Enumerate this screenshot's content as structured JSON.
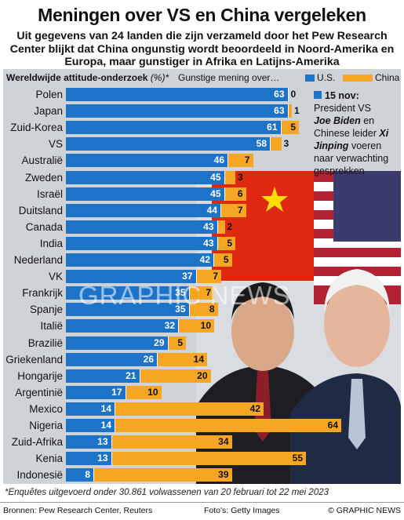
{
  "title": "Meningen over VS en China vergeleken",
  "subtitle": "Uit gegevens van 24 landen die zijn verzameld door het Pew Research Center blijkt dat China ongunstig wordt beoordeeld in Noord-Amerika en Europa, maar gunstiger in Afrika en Latijns-Amerika",
  "legend": {
    "label": "Wereldwijde attitude-onderzoek",
    "label_unit": "(%)*",
    "measure": "Gunstige mening over…",
    "us": "U.S.",
    "china": "China"
  },
  "note": {
    "date": "15 nov:",
    "text1": "President VS",
    "leader1": "Joe Biden",
    "text2": "en Chinese leider",
    "leader2": "Xi Jinping",
    "text3": "voeren naar verwachting gesprekken"
  },
  "watermark": "GRAPHIC NEWS",
  "footnote": "*Enquêtes uitgevoerd onder 30.861 volwassenen van 20 februari tot 22 mei 2023",
  "footer": {
    "sources": "Bronnen: Pew Research Center, Reuters",
    "photos": "Foto's: Getty Images",
    "copyright": "© GRAPHIC NEWS"
  },
  "colors": {
    "us": "#1d73c8",
    "china": "#f6a623",
    "panel": "#cfd3d7"
  },
  "chart_data": {
    "type": "bar",
    "orientation": "horizontal",
    "stacking": "adjacent",
    "categories": [
      "Polen",
      "Japan",
      "Zuid-Korea",
      "VS",
      "Australië",
      "Zweden",
      "Israël",
      "Duitsland",
      "Canada",
      "India",
      "Nederland",
      "VK",
      "Frankrijk",
      "Spanje",
      "Italië",
      "Brazilië",
      "Griekenland",
      "Hongarije",
      "Argentinië",
      "Mexico",
      "Nigeria",
      "Zuid-Afrika",
      "Kenia",
      "Indonesië"
    ],
    "series": [
      {
        "name": "U.S.",
        "color": "#1d73c8",
        "values": [
          63,
          63,
          61,
          58,
          46,
          45,
          45,
          44,
          43,
          43,
          42,
          37,
          35,
          35,
          32,
          29,
          26,
          21,
          17,
          14,
          14,
          13,
          13,
          8
        ]
      },
      {
        "name": "China",
        "color": "#f6a623",
        "values": [
          0,
          1,
          5,
          3,
          7,
          3,
          6,
          7,
          2,
          5,
          5,
          7,
          7,
          8,
          10,
          5,
          14,
          20,
          10,
          42,
          64,
          34,
          55,
          39
        ]
      }
    ],
    "xlim": [
      0,
      100
    ],
    "legend": "top"
  }
}
